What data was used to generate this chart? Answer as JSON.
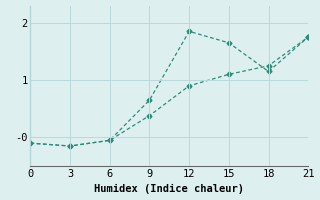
{
  "line1_x": [
    0,
    3,
    6,
    9,
    12,
    15,
    18,
    21
  ],
  "line1_y": [
    -0.1,
    -0.15,
    -0.05,
    0.65,
    1.85,
    1.65,
    1.15,
    1.75
  ],
  "line2_x": [
    0,
    3,
    6,
    9,
    12,
    15,
    18,
    21
  ],
  "line2_y": [
    -0.1,
    -0.15,
    -0.05,
    0.38,
    0.9,
    1.1,
    1.25,
    1.75
  ],
  "line_color": "#2e8b7a",
  "bg_color": "#ddf0ef",
  "grid_color": "#b8dada",
  "xlabel": "Humidex (Indice chaleur)",
  "xlim": [
    0,
    21
  ],
  "ylim": [
    -0.5,
    2.3
  ],
  "xticks": [
    0,
    3,
    6,
    9,
    12,
    15,
    18,
    21
  ],
  "yticks": [
    0,
    1,
    2
  ],
  "ytick_labels": [
    "-0",
    "1",
    "2"
  ],
  "marker": "D",
  "markersize": 2.5,
  "linewidth": 0.9,
  "xlabel_fontsize": 7.5,
  "tick_fontsize": 7.5
}
